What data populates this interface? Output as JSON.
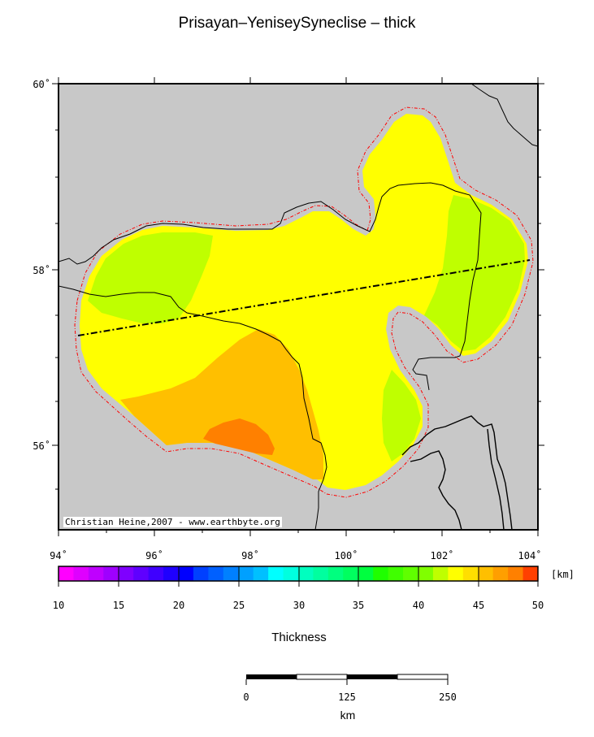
{
  "title": "Prisayan–YeniseySyneclise – thick",
  "credit": "Christian Heine,2007 - www.earthbyte.org",
  "map": {
    "lon_labels": [
      "94˚",
      "96˚",
      "98˚",
      "100˚",
      "102˚",
      "104˚"
    ],
    "lat_labels": [
      "60˚",
      "58˚",
      "56˚"
    ],
    "colors": {
      "background": "#c8c8c8",
      "thickness_40_42": "#bfff00",
      "thickness_42_44": "#ffff00",
      "thickness_44_46": "#ffbf00",
      "thickness_46_48": "#ff8000",
      "boundary": "#ff0000",
      "profile_line": "#000000"
    }
  },
  "colorbar": {
    "unit": "[km]",
    "tick_labels": [
      "10",
      "15",
      "20",
      "25",
      "30",
      "35",
      "40",
      "45",
      "50"
    ],
    "colors": [
      "#ff00ff",
      "#df00ff",
      "#bf00ff",
      "#9f00ff",
      "#7f00ff",
      "#5f00ff",
      "#3f00ff",
      "#1f00ff",
      "#0000ff",
      "#0040ff",
      "#0060ff",
      "#0080ff",
      "#00a0ff",
      "#00c0ff",
      "#00ffff",
      "#00ffdf",
      "#00ffbf",
      "#00ff9f",
      "#00ff7f",
      "#00ff5f",
      "#00ff3f",
      "#1fff00",
      "#40ff00",
      "#60ff00",
      "#80ff00",
      "#bfff00",
      "#ffff00",
      "#ffdf00",
      "#ffbf00",
      "#ff9f00",
      "#ff8000",
      "#ff4000"
    ],
    "label": "Thickness"
  },
  "scalebar": {
    "tick_labels": [
      "0",
      "125",
      "250"
    ],
    "unit": "km"
  }
}
